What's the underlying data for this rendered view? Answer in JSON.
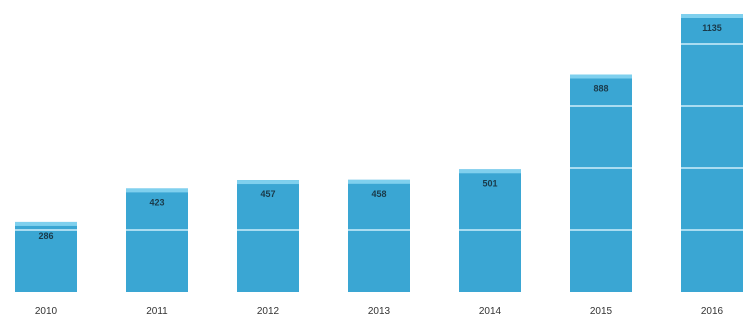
{
  "chart_data": {
    "type": "bar",
    "title": "",
    "xlabel": "",
    "ylabel": "",
    "categories": [
      "2010",
      "2011",
      "2012",
      "2013",
      "2014",
      "2015",
      "2016"
    ],
    "values": [
      286,
      423,
      457,
      458,
      501,
      888,
      1135
    ],
    "value_labels": [
      "286",
      "423",
      "457",
      "458",
      "501",
      "888",
      "1135"
    ],
    "ylim": [
      0,
      1135
    ],
    "grid": false,
    "legend": "none",
    "colors": {
      "bar_fill": "#3aa6d3",
      "bar_cap": "#7fd0ee",
      "segment_line": "#a9dcf1",
      "text": "#333333"
    }
  }
}
